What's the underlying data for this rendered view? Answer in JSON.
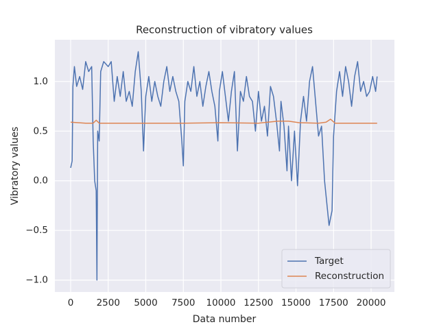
{
  "chart_data": {
    "type": "line",
    "title": "Reconstruction of vibratory values",
    "xlabel": "Data number",
    "ylabel": "Vibratory values",
    "xlim": [
      -1050,
      21550
    ],
    "ylim": [
      -1.12,
      1.42
    ],
    "xticks": [
      0,
      2500,
      5000,
      7500,
      10000,
      12500,
      15000,
      17500,
      20000
    ],
    "yticks": [
      {
        "value": -1,
        "label": "−1.0"
      },
      {
        "value": -0.5,
        "label": "−0.5"
      },
      {
        "value": 0,
        "label": "0.0"
      },
      0.5,
      {
        "value": 1,
        "label": "1.0"
      }
    ],
    "grid": true,
    "legend": "lower right",
    "series": [
      {
        "name": "Target",
        "color": "#4c72b0",
        "x": [
          0,
          100,
          150,
          250,
          400,
          600,
          800,
          1000,
          1200,
          1400,
          1500,
          1600,
          1700,
          1750,
          1800,
          1900,
          2000,
          2200,
          2500,
          2700,
          2900,
          3100,
          3300,
          3500,
          3700,
          3900,
          4100,
          4300,
          4500,
          4700,
          4850,
          5000,
          5200,
          5400,
          5600,
          5800,
          6000,
          6200,
          6400,
          6600,
          6800,
          7000,
          7200,
          7400,
          7500,
          7600,
          7800,
          8000,
          8200,
          8400,
          8600,
          8800,
          9000,
          9200,
          9400,
          9600,
          9800,
          9900,
          10100,
          10300,
          10500,
          10700,
          10900,
          11100,
          11300,
          11500,
          11700,
          11900,
          12100,
          12300,
          12500,
          12700,
          12900,
          13100,
          13300,
          13500,
          13700,
          13900,
          14000,
          14200,
          14400,
          14500,
          14700,
          14900,
          15100,
          15300,
          15500,
          15700,
          15900,
          16100,
          16300,
          16500,
          16700,
          16900,
          17100,
          17200,
          17400,
          17500,
          17700,
          17900,
          18100,
          18300,
          18500,
          18700,
          18900,
          19100,
          19300,
          19500,
          19700,
          19900,
          20100,
          20300,
          20400
        ],
        "values": [
          0.13,
          0.2,
          0.95,
          1.15,
          0.95,
          1.05,
          0.92,
          1.2,
          1.1,
          1.15,
          0.4,
          0.0,
          -0.1,
          -1.0,
          0.5,
          0.4,
          1.1,
          1.2,
          1.15,
          1.2,
          0.8,
          1.05,
          0.85,
          1.1,
          0.8,
          0.9,
          0.75,
          1.1,
          1.3,
          0.9,
          0.3,
          0.85,
          1.05,
          0.8,
          1.0,
          0.85,
          0.75,
          1.0,
          1.15,
          0.9,
          1.05,
          0.9,
          0.8,
          0.4,
          0.15,
          0.8,
          1.0,
          0.9,
          1.15,
          0.85,
          1.0,
          0.75,
          0.95,
          1.1,
          0.9,
          0.75,
          0.4,
          0.9,
          1.1,
          0.85,
          0.6,
          0.9,
          1.1,
          0.3,
          0.9,
          0.8,
          1.05,
          0.85,
          0.8,
          0.5,
          0.9,
          0.6,
          0.75,
          0.45,
          0.95,
          0.85,
          0.6,
          0.3,
          0.8,
          0.55,
          0.1,
          0.55,
          0.0,
          0.5,
          -0.05,
          0.6,
          0.85,
          0.6,
          1.0,
          1.15,
          0.8,
          0.45,
          0.55,
          0.0,
          -0.3,
          -0.45,
          -0.3,
          0.45,
          0.9,
          1.1,
          0.85,
          1.15,
          1.0,
          0.75,
          1.05,
          1.2,
          0.9,
          1.0,
          0.85,
          0.9,
          1.05,
          0.9,
          1.05
        ]
      },
      {
        "name": "Reconstruction",
        "color": "#dd8452",
        "x": [
          0,
          1000,
          1500,
          1700,
          1900,
          2500,
          5000,
          7500,
          10000,
          12500,
          13800,
          14500,
          15200,
          16500,
          17000,
          17300,
          17600,
          18500,
          20400
        ],
        "values": [
          0.59,
          0.58,
          0.58,
          0.61,
          0.58,
          0.58,
          0.58,
          0.58,
          0.585,
          0.58,
          0.6,
          0.6,
          0.585,
          0.58,
          0.59,
          0.62,
          0.58,
          0.58,
          0.58
        ]
      }
    ]
  }
}
